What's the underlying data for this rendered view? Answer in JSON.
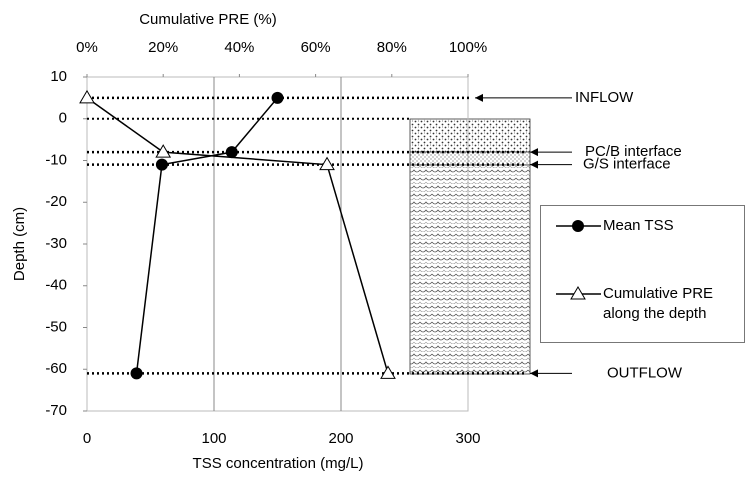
{
  "chart_data": {
    "type": "line",
    "x_label": "TSS concentration (mg/L)",
    "x2_label": "Cumulative PRE (%)",
    "y_label": "Depth (cm)",
    "xlim": [
      0,
      300
    ],
    "xticks": [
      0,
      100,
      200,
      300
    ],
    "x2lim": [
      0,
      100
    ],
    "x2ticks": [
      {
        "value": 0,
        "label": "0%"
      },
      {
        "value": 20,
        "label": "20%"
      },
      {
        "value": 40,
        "label": "40%"
      },
      {
        "value": 60,
        "label": "60%"
      },
      {
        "value": 80,
        "label": "80%"
      },
      {
        "value": 100,
        "label": "100%"
      }
    ],
    "ylim": [
      -70,
      10
    ],
    "yticks": [
      -70,
      -60,
      -50,
      -40,
      -30,
      -20,
      -10,
      0,
      10
    ],
    "grid": true,
    "series": [
      {
        "name": "Mean TSS",
        "color": "#000000",
        "marker": "circle",
        "x": [
          150,
          114,
          59,
          39
        ],
        "values": [
          5,
          -8,
          -11,
          -61
        ]
      },
      {
        "name": "Cumulative PRE along the depth",
        "color": "#000000",
        "marker": "triangle",
        "axis": "x2",
        "x": [
          0,
          20,
          63,
          79
        ],
        "values": [
          5,
          -8,
          -11,
          -61
        ]
      }
    ],
    "annotations": [
      {
        "text": "INFLOW",
        "y": 5
      },
      {
        "text": "PC/B interface",
        "y": -8
      },
      {
        "text": "G/S interface",
        "y": -11
      },
      {
        "text": "OUTFLOW",
        "y": -61
      }
    ]
  }
}
